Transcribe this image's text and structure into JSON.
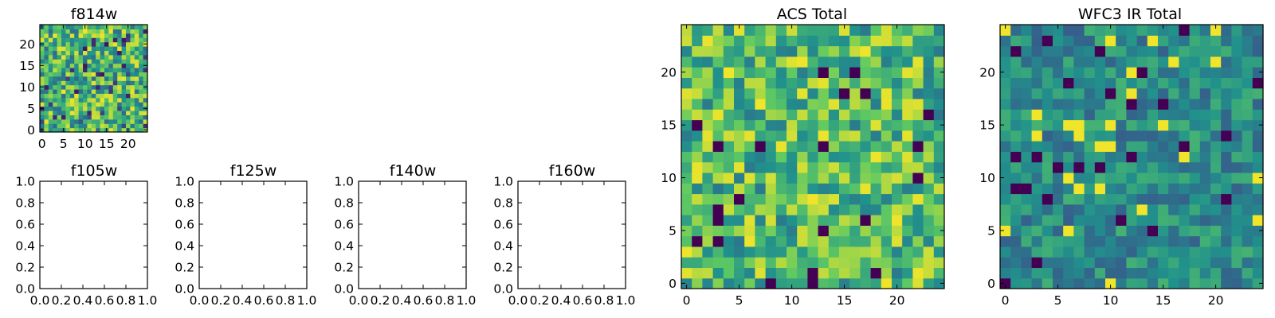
{
  "chart_data": [
    {
      "id": "f814w",
      "type": "heatmap",
      "title": "f814w",
      "grid_size": 25,
      "seed": 814,
      "xlim": [
        -0.5,
        24.5
      ],
      "ylim": [
        -0.5,
        24.5
      ],
      "xticks": [
        0,
        5,
        10,
        15,
        20
      ],
      "xtick_labels": [
        "0",
        "5",
        "10",
        "15",
        "20"
      ],
      "yticks": [
        0,
        5,
        10,
        15,
        20
      ],
      "ytick_labels": [
        "0",
        "5",
        "10",
        "15",
        "20"
      ],
      "colormap": "viridis"
    },
    {
      "id": "f105w",
      "type": "empty",
      "title": "f105w",
      "xlim": [
        0,
        1
      ],
      "ylim": [
        0,
        1
      ],
      "xticks": [
        0,
        0.2,
        0.4,
        0.6,
        0.8,
        1.0
      ],
      "xtick_labels": [
        "0.0",
        "0.2",
        "0.4",
        "0.6",
        "0.8",
        "1.0"
      ],
      "yticks": [
        0,
        0.2,
        0.4,
        0.6,
        0.8,
        1.0
      ],
      "ytick_labels": [
        "0.0",
        "0.2",
        "0.4",
        "0.6",
        "0.8",
        "1.0"
      ]
    },
    {
      "id": "f125w",
      "type": "empty",
      "title": "f125w",
      "xlim": [
        0,
        1
      ],
      "ylim": [
        0,
        1
      ],
      "xticks": [
        0,
        0.2,
        0.4,
        0.6,
        0.8,
        1.0
      ],
      "xtick_labels": [
        "0.0",
        "0.2",
        "0.4",
        "0.6",
        "0.8",
        "1.0"
      ],
      "yticks": [
        0,
        0.2,
        0.4,
        0.6,
        0.8,
        1.0
      ],
      "ytick_labels": [
        "0.0",
        "0.2",
        "0.4",
        "0.6",
        "0.8",
        "1.0"
      ]
    },
    {
      "id": "f140w",
      "type": "empty",
      "title": "f140w",
      "xlim": [
        0,
        1
      ],
      "ylim": [
        0,
        1
      ],
      "xticks": [
        0,
        0.2,
        0.4,
        0.6,
        0.8,
        1.0
      ],
      "xtick_labels": [
        "0.0",
        "0.2",
        "0.4",
        "0.6",
        "0.8",
        "1.0"
      ],
      "yticks": [
        0,
        0.2,
        0.4,
        0.6,
        0.8,
        1.0
      ],
      "ytick_labels": [
        "0.0",
        "0.2",
        "0.4",
        "0.6",
        "0.8",
        "1.0"
      ]
    },
    {
      "id": "f160w",
      "type": "empty",
      "title": "f160w",
      "xlim": [
        0,
        1
      ],
      "ylim": [
        0,
        1
      ],
      "xticks": [
        0,
        0.2,
        0.4,
        0.6,
        0.8,
        1.0
      ],
      "xtick_labels": [
        "0.0",
        "0.2",
        "0.4",
        "0.6",
        "0.8",
        "1.0"
      ],
      "yticks": [
        0,
        0.2,
        0.4,
        0.6,
        0.8,
        1.0
      ],
      "ytick_labels": [
        "0.0",
        "0.2",
        "0.4",
        "0.6",
        "0.8",
        "1.0"
      ]
    },
    {
      "id": "acs-total",
      "type": "heatmap",
      "title": "ACS Total",
      "grid_size": 25,
      "seed": 1001,
      "xlim": [
        -0.5,
        24.5
      ],
      "ylim": [
        -0.5,
        24.5
      ],
      "xticks": [
        0,
        5,
        10,
        15,
        20
      ],
      "xtick_labels": [
        "0",
        "5",
        "10",
        "15",
        "20"
      ],
      "yticks": [
        0,
        5,
        10,
        15,
        20
      ],
      "ytick_labels": [
        "0",
        "5",
        "10",
        "15",
        "20"
      ],
      "colormap": "viridis"
    },
    {
      "id": "wfc3-ir-total",
      "type": "heatmap",
      "title": "WFC3 IR Total",
      "grid_size": 25,
      "seed": 2002,
      "xlim": [
        -0.5,
        24.5
      ],
      "ylim": [
        -0.5,
        24.5
      ],
      "xticks": [
        0,
        5,
        10,
        15,
        20
      ],
      "xtick_labels": [
        "0",
        "5",
        "10",
        "15",
        "20"
      ],
      "yticks": [
        0,
        5,
        10,
        15,
        20
      ],
      "ytick_labels": [
        "0",
        "5",
        "10",
        "15",
        "20"
      ],
      "colormap": "viridis"
    }
  ],
  "colors": {
    "viridis": [
      "#440154",
      "#3b528b",
      "#21918c",
      "#5ec962",
      "#fde725"
    ]
  }
}
